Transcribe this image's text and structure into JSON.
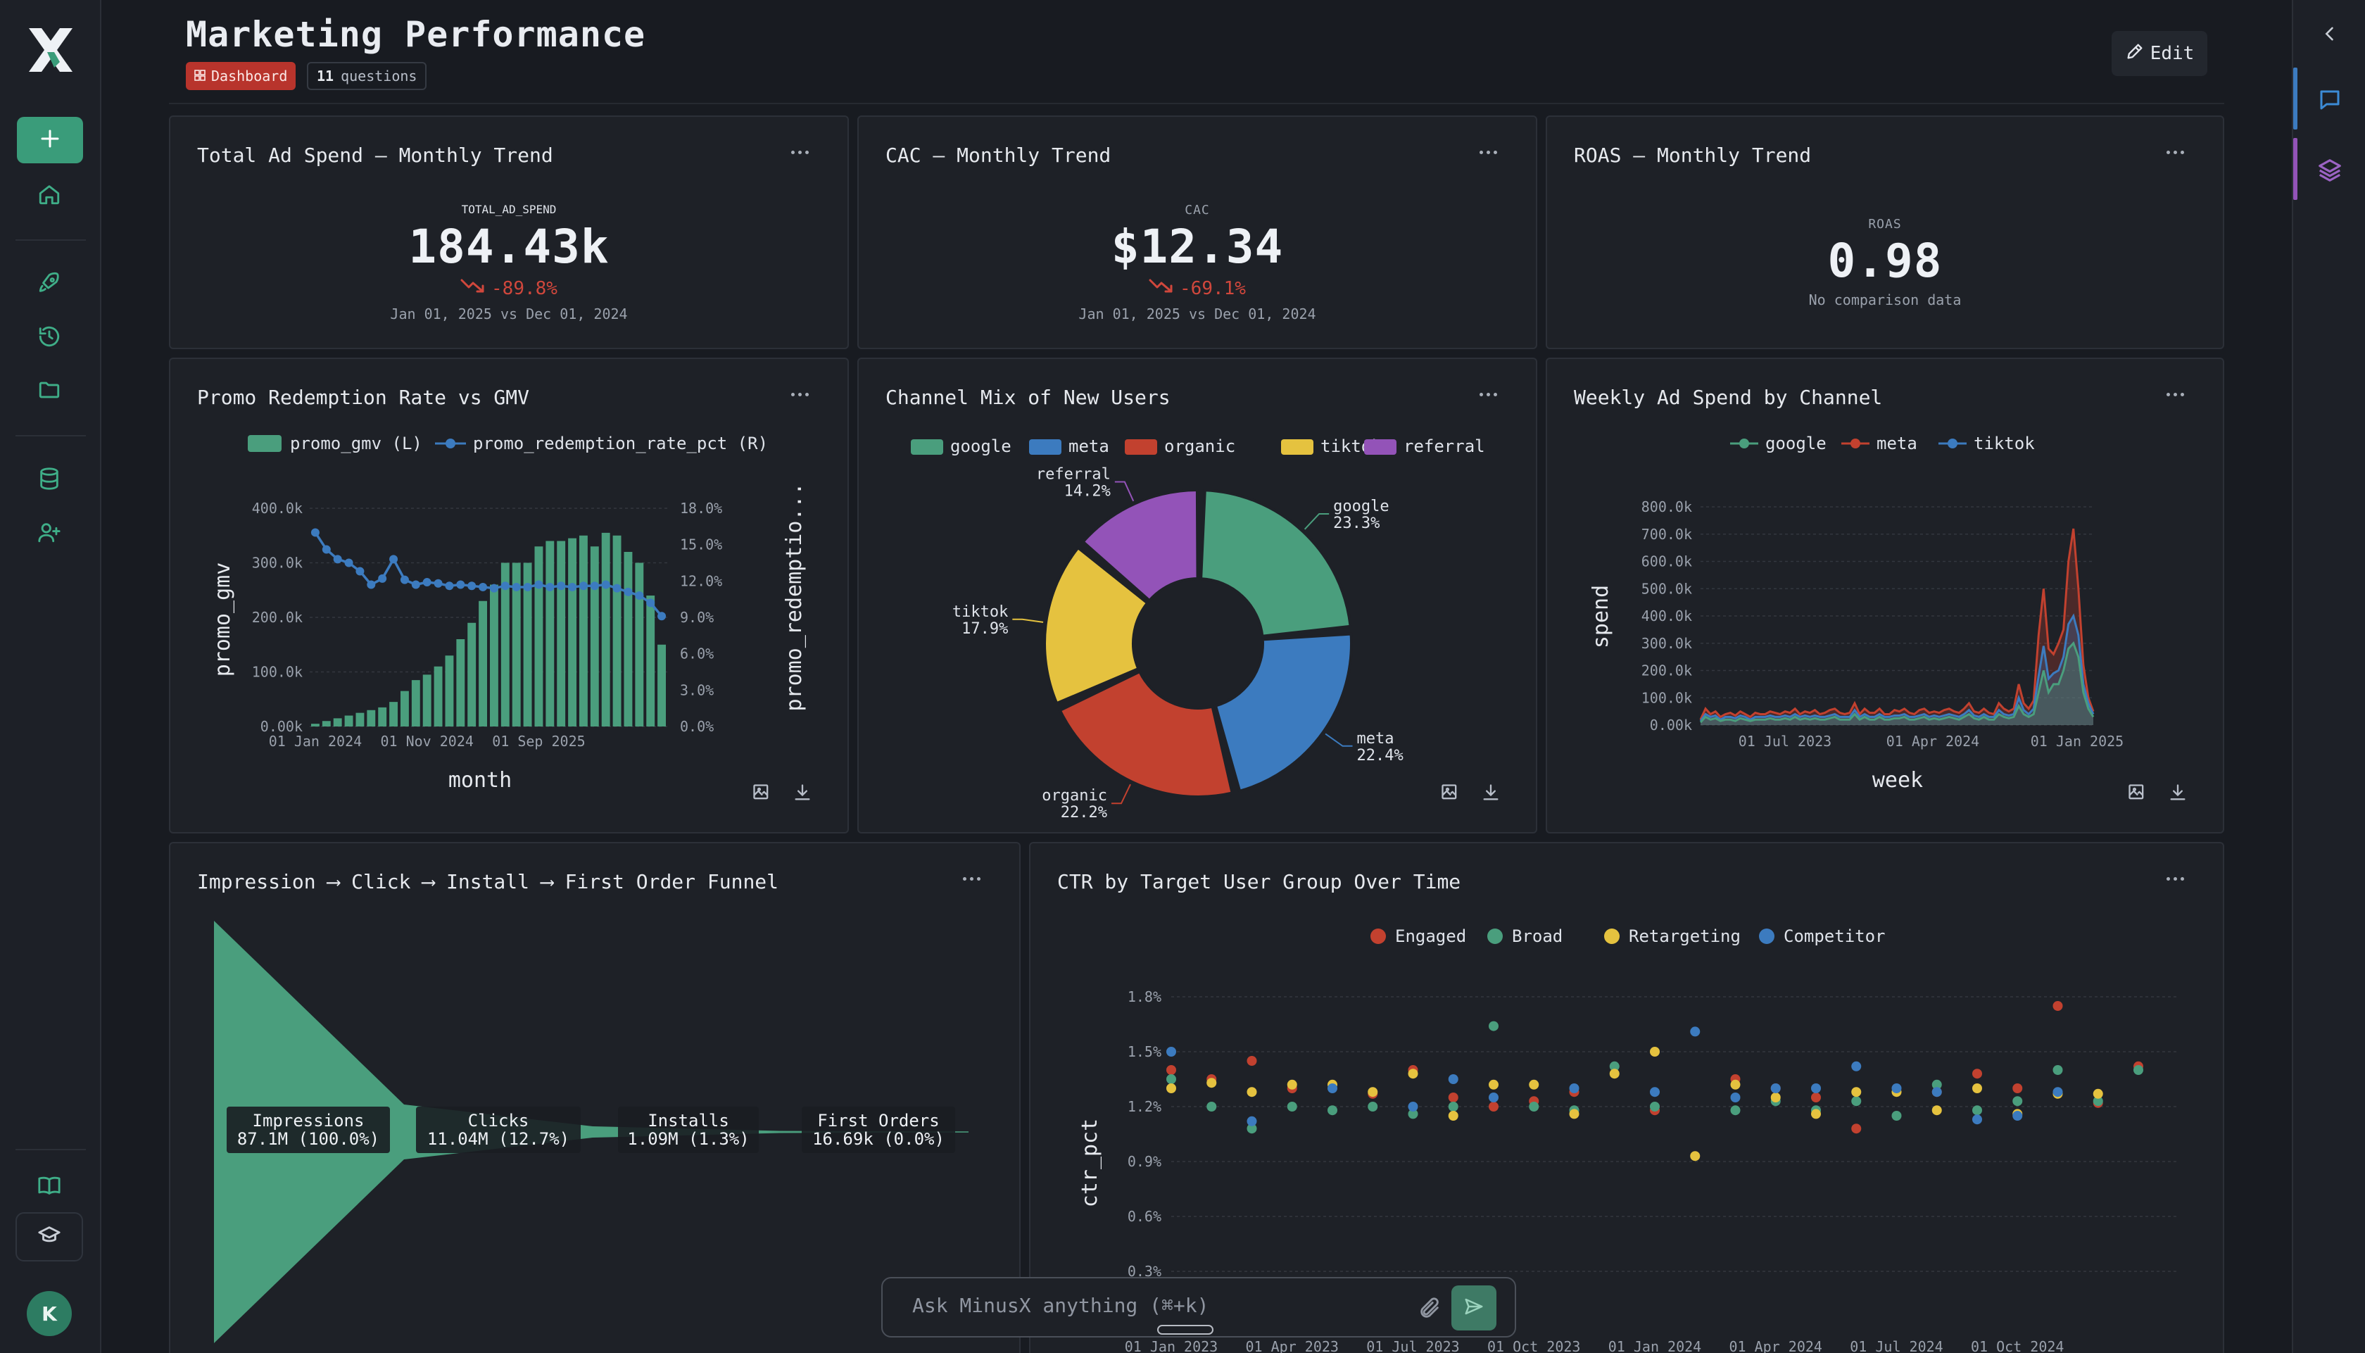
{
  "dashboard": {
    "title": "Marketing Performance",
    "type_tag": "Dashboard",
    "questions_count": "11",
    "questions_word": "questions",
    "edit_label": "Edit"
  },
  "kpis": [
    {
      "title": "Total Ad Spend — Monthly Trend",
      "label": "TOTAL_AD_SPEND",
      "value": "184.43k",
      "delta": "-89.8%",
      "comparison": "Jan 01, 2025 vs Dec 01, 2024"
    },
    {
      "title": "CAC — Monthly Trend",
      "label": "CAC",
      "value": "$12.34",
      "delta": "-69.1%",
      "comparison": "Jan 01, 2025 vs Dec 01, 2024"
    },
    {
      "title": "ROAS — Monthly Trend",
      "label": "ROAS",
      "value": "0.98",
      "comparison": "No comparison data"
    }
  ],
  "colors": {
    "green": "#4a9e7d",
    "blue": "#3c7bbf",
    "red": "#c2412f",
    "yellow": "#e5c23f",
    "purple": "#9353b8",
    "accent": "#3a9c7a",
    "delta_negative": "#d0473c"
  },
  "icons": {
    "new": "plus-icon",
    "home": "home-icon",
    "rocket": "rocket-icon",
    "history": "history-icon",
    "folder": "folder-icon",
    "database": "database-icon",
    "add_user": "user-plus-icon",
    "book": "book-icon",
    "learn": "graduation-cap-icon",
    "collapse": "chevron-left-icon",
    "chat": "chat-icon",
    "layers": "layers-icon",
    "edit": "pencil-icon",
    "image": "image-download-icon",
    "download": "download-icon",
    "attach": "paperclip-icon",
    "send": "send-icon"
  },
  "user": {
    "initial": "K"
  },
  "ask": {
    "placeholder": "Ask MinusX anything (⌘+k)"
  },
  "chart_data": [
    {
      "title": "Promo Redemption Rate vs GMV",
      "type": "bar",
      "xlabel": "month",
      "ylabel": "promo_gmv",
      "ylabel_right": "promo_redemptio...",
      "x_ticks": [
        "01 Jan 2024",
        "01 Nov 2024",
        "01 Sep 2025"
      ],
      "ylim": [
        0,
        400000
      ],
      "y_ticks": [
        "0.00k",
        "100.0k",
        "200.0k",
        "300.0k",
        "400.0k"
      ],
      "ylim_right": [
        0,
        18
      ],
      "y_ticks_right": [
        "0.0%",
        "3.0%",
        "6.0%",
        "9.0%",
        "12.0%",
        "15.0%",
        "18.0%"
      ],
      "series": [
        {
          "name": "promo_gmv (L)",
          "type": "bar",
          "color": "#4a9e7d",
          "values": [
            5000,
            10000,
            15000,
            20000,
            25000,
            30000,
            35000,
            45000,
            65000,
            85000,
            95000,
            110000,
            130000,
            160000,
            190000,
            230000,
            260000,
            300000,
            300000,
            300000,
            330000,
            340000,
            340000,
            345000,
            350000,
            330000,
            355000,
            350000,
            320000,
            300000,
            240000,
            150000
          ]
        },
        {
          "name": "promo_redemption_rate_pct (R)",
          "type": "line",
          "color": "#3c7bbf",
          "values": [
            16.0,
            14.6,
            13.8,
            13.5,
            12.8,
            11.7,
            12.2,
            13.8,
            12.1,
            11.7,
            11.9,
            11.8,
            11.6,
            11.7,
            11.6,
            11.5,
            11.4,
            11.6,
            11.5,
            11.5,
            11.7,
            11.5,
            11.6,
            11.5,
            11.6,
            11.6,
            11.7,
            11.4,
            11.1,
            10.8,
            10.2,
            9.1
          ]
        }
      ],
      "legend": "top"
    },
    {
      "title": "Channel Mix of New Users",
      "type": "pie",
      "categories": [
        "google",
        "meta",
        "organic",
        "tiktok",
        "referral"
      ],
      "values": [
        23.3,
        22.4,
        22.2,
        17.9,
        14.2
      ],
      "value_labels": [
        "23.3%",
        "22.4%",
        "22.2%",
        "17.9%",
        "14.2%"
      ],
      "colors": [
        "#4a9e7d",
        "#3c7bbf",
        "#c2412f",
        "#e5c23f",
        "#9353b8"
      ],
      "legend": "top"
    },
    {
      "title": "Weekly Ad Spend by Channel",
      "type": "area",
      "xlabel": "week",
      "ylabel": "spend",
      "x_ticks": [
        "01 Jul 2023",
        "01 Apr 2024",
        "01 Jan 2025"
      ],
      "ylim": [
        0,
        800000
      ],
      "y_ticks": [
        "0.00k",
        "100.0k",
        "200.0k",
        "300.0k",
        "400.0k",
        "500.0k",
        "600.0k",
        "700.0k",
        "800.0k"
      ],
      "series": [
        {
          "name": "google",
          "color": "#4a9e7d",
          "values": [
            10000,
            30000,
            20000,
            25000,
            15000,
            20000,
            20000,
            15000,
            25000,
            20000,
            15000,
            20000,
            20000,
            20000,
            25000,
            20000,
            20000,
            25000,
            20000,
            30000,
            20000,
            25000,
            20000,
            25000,
            20000,
            20000,
            25000,
            30000,
            20000,
            20000,
            20000,
            40000,
            20000,
            30000,
            20000,
            20000,
            30000,
            20000,
            20000,
            25000,
            25000,
            30000,
            20000,
            20000,
            25000,
            30000,
            20000,
            25000,
            20000,
            25000,
            30000,
            25000,
            20000,
            30000,
            40000,
            25000,
            20000,
            30000,
            20000,
            20000,
            40000,
            30000,
            25000,
            30000,
            70000,
            40000,
            30000,
            40000,
            120000,
            200000,
            120000,
            150000,
            150000,
            200000,
            280000,
            300000,
            250000,
            120000,
            60000,
            30000
          ]
        },
        {
          "name": "meta",
          "color": "#c2412f",
          "values": [
            20000,
            60000,
            40000,
            50000,
            30000,
            40000,
            45000,
            35000,
            50000,
            40000,
            30000,
            45000,
            40000,
            40000,
            50000,
            45000,
            40000,
            50000,
            45000,
            60000,
            40000,
            50000,
            45000,
            55000,
            40000,
            45000,
            55000,
            60000,
            45000,
            40000,
            45000,
            80000,
            40000,
            60000,
            45000,
            45000,
            60000,
            40000,
            40000,
            55000,
            50000,
            60000,
            45000,
            40000,
            55000,
            60000,
            45000,
            50000,
            45000,
            55000,
            60000,
            50000,
            45000,
            60000,
            80000,
            50000,
            45000,
            60000,
            45000,
            40000,
            80000,
            60000,
            50000,
            60000,
            150000,
            80000,
            60000,
            90000,
            330000,
            500000,
            280000,
            260000,
            300000,
            350000,
            600000,
            720000,
            500000,
            220000,
            100000,
            50000
          ]
        },
        {
          "name": "tiktok",
          "color": "#3c7bbf",
          "values": [
            15000,
            40000,
            30000,
            35000,
            20000,
            30000,
            30000,
            25000,
            35000,
            30000,
            20000,
            30000,
            30000,
            30000,
            35000,
            30000,
            30000,
            35000,
            30000,
            40000,
            30000,
            35000,
            30000,
            35000,
            30000,
            30000,
            35000,
            40000,
            30000,
            30000,
            30000,
            55000,
            30000,
            40000,
            30000,
            30000,
            40000,
            30000,
            30000,
            35000,
            35000,
            40000,
            30000,
            30000,
            35000,
            40000,
            30000,
            35000,
            30000,
            35000,
            40000,
            35000,
            30000,
            40000,
            55000,
            35000,
            30000,
            40000,
            30000,
            30000,
            55000,
            40000,
            35000,
            40000,
            100000,
            55000,
            40000,
            60000,
            180000,
            290000,
            170000,
            190000,
            200000,
            250000,
            370000,
            400000,
            330000,
            150000,
            80000,
            40000
          ]
        }
      ],
      "legend": "top"
    },
    {
      "title": "Impression ⟶ Click ⟶ Install ⟶ First Order Funnel",
      "type": "bar",
      "subtype": "funnel",
      "categories": [
        "Impressions",
        "Clicks",
        "Installs",
        "First Orders"
      ],
      "values": [
        87100000,
        11040000,
        1090000,
        16690
      ],
      "value_labels": [
        "87.1M (100.0%)",
        "11.04M (12.7%)",
        "1.09M (1.3%)",
        "16.69k (0.0%)"
      ],
      "color": "#4a9e7d"
    },
    {
      "title": "CTR by Target User Group Over Time",
      "type": "scatter",
      "ylabel": "ctr_pct",
      "x_ticks": [
        "01 Jan 2023",
        "01 Apr 2023",
        "01 Jul 2023",
        "01 Oct 2023",
        "01 Jan 2024",
        "01 Apr 2024",
        "01 Jul 2024",
        "01 Oct 2024"
      ],
      "y_ticks": [
        "0.3%",
        "0.6%",
        "0.9%",
        "1.2%",
        "1.5%",
        "1.8%"
      ],
      "ylim": [
        0.3,
        1.8
      ],
      "x_index_range": [
        0,
        24
      ],
      "legend": "top",
      "series": [
        {
          "name": "Engaged",
          "color": "#c2412f",
          "x": [
            0,
            1,
            2,
            3,
            5,
            6,
            7,
            8,
            9,
            10,
            12,
            14,
            15,
            16,
            17,
            19,
            20,
            21,
            22,
            23,
            24
          ],
          "values": [
            1.4,
            1.35,
            1.45,
            1.3,
            1.27,
            1.4,
            1.25,
            1.2,
            1.23,
            1.28,
            1.18,
            1.35,
            1.3,
            1.25,
            1.08,
            1.28,
            1.38,
            1.3,
            1.75,
            1.22,
            1.42
          ]
        },
        {
          "name": "Broad",
          "color": "#4a9e7d",
          "x": [
            0,
            1,
            2,
            3,
            4,
            5,
            6,
            7,
            8,
            9,
            10,
            11,
            12,
            14,
            15,
            16,
            17,
            18,
            19,
            20,
            21,
            22,
            23,
            24
          ],
          "values": [
            1.35,
            1.2,
            1.08,
            1.2,
            1.18,
            1.2,
            1.16,
            1.2,
            1.64,
            1.2,
            1.18,
            1.42,
            1.2,
            1.18,
            1.23,
            1.18,
            1.23,
            1.15,
            1.32,
            1.18,
            1.23,
            1.4,
            1.23,
            1.4
          ]
        },
        {
          "name": "Retargeting",
          "color": "#e5c23f",
          "x": [
            0,
            1,
            2,
            3,
            4,
            5,
            6,
            7,
            8,
            9,
            10,
            11,
            12,
            13,
            14,
            15,
            16,
            17,
            18,
            19,
            20,
            21,
            22,
            23
          ],
          "values": [
            1.3,
            1.33,
            1.28,
            1.32,
            1.32,
            1.28,
            1.38,
            1.15,
            1.32,
            1.32,
            1.16,
            1.38,
            1.5,
            0.93,
            1.32,
            1.25,
            1.16,
            1.28,
            1.28,
            1.18,
            1.3,
            1.16,
            1.27,
            1.27
          ]
        },
        {
          "name": "Competitor",
          "color": "#3c7bbf",
          "x": [
            0,
            2,
            4,
            6,
            7,
            8,
            10,
            12,
            13,
            14,
            15,
            16,
            17,
            18,
            19,
            20,
            21,
            22
          ],
          "values": [
            1.5,
            1.12,
            1.3,
            1.2,
            1.35,
            1.25,
            1.3,
            1.28,
            1.61,
            1.25,
            1.3,
            1.3,
            1.42,
            1.3,
            1.28,
            1.13,
            1.15,
            1.28
          ]
        }
      ]
    }
  ]
}
